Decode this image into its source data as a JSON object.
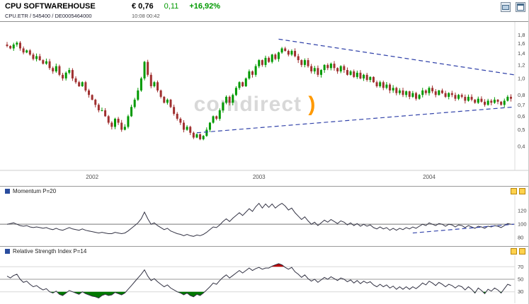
{
  "header": {
    "title": "CPU SOFTWAREHOUSE",
    "instrument_line": "CPU.ETR / 545400 / DE0005464000",
    "price": "€ 0,76",
    "change": "0,11",
    "change_pct": "+16,92%",
    "time_line": "10:08  00:42"
  },
  "watermark": {
    "text": "comdirect",
    "accent": ")"
  },
  "colors": {
    "up": "#009900",
    "down": "#a03030",
    "trendline": "#3344aa",
    "indicator_line": "#333344",
    "baseline": "#777777",
    "green_fill": "#007700",
    "red_fill": "#bb0000",
    "accent_orange": "#ff9900",
    "axis_text": "#444444"
  },
  "chart_data": [
    {
      "type": "candlestick",
      "name": "price",
      "title": "CPU SOFTWAREHOUSE",
      "x_tick_labels": [
        "2002",
        "2003",
        "2004"
      ],
      "x_tick_positions": [
        26,
        77,
        129
      ],
      "y_tick_labels": [
        "1,8",
        "1,6",
        "1,4",
        "1,2",
        "1,0",
        "0,8",
        "0,7",
        "0,6",
        "0,5",
        "0,4"
      ],
      "y_ticks": [
        1.8,
        1.6,
        1.4,
        1.2,
        1.0,
        0.8,
        0.7,
        0.6,
        0.5,
        0.4
      ],
      "y_scale": "log",
      "y_range": [
        0.3,
        1.95
      ],
      "first_open": 1.58,
      "closes": [
        1.55,
        1.5,
        1.58,
        1.62,
        1.5,
        1.42,
        1.46,
        1.38,
        1.3,
        1.35,
        1.28,
        1.22,
        1.26,
        1.15,
        1.1,
        1.18,
        1.05,
        1.0,
        1.08,
        1.12,
        1.0,
        0.95,
        0.9,
        0.95,
        0.85,
        0.8,
        0.75,
        0.7,
        0.65,
        0.65,
        0.6,
        0.55,
        0.52,
        0.58,
        0.55,
        0.5,
        0.52,
        0.6,
        0.68,
        0.75,
        0.85,
        1.0,
        1.25,
        1.05,
        0.9,
        0.95,
        0.85,
        0.78,
        0.72,
        0.75,
        0.68,
        0.62,
        0.58,
        0.55,
        0.5,
        0.52,
        0.48,
        0.45,
        0.47,
        0.44,
        0.46,
        0.5,
        0.55,
        0.6,
        0.58,
        0.65,
        0.72,
        0.78,
        0.72,
        0.8,
        0.88,
        0.95,
        0.9,
        1.0,
        1.1,
        1.05,
        1.18,
        1.28,
        1.2,
        1.32,
        1.25,
        1.38,
        1.3,
        1.42,
        1.5,
        1.45,
        1.38,
        1.45,
        1.35,
        1.28,
        1.2,
        1.28,
        1.18,
        1.1,
        1.15,
        1.05,
        1.12,
        1.2,
        1.15,
        1.22,
        1.15,
        1.1,
        1.18,
        1.12,
        1.05,
        1.1,
        1.02,
        1.08,
        1.0,
        1.05,
        0.98,
        1.02,
        0.95,
        0.9,
        0.95,
        0.88,
        0.92,
        0.85,
        0.88,
        0.82,
        0.85,
        0.8,
        0.84,
        0.78,
        0.82,
        0.76,
        0.8,
        0.85,
        0.82,
        0.88,
        0.84,
        0.8,
        0.85,
        0.82,
        0.78,
        0.82,
        0.8,
        0.76,
        0.8,
        0.78,
        0.74,
        0.78,
        0.75,
        0.72,
        0.76,
        0.73,
        0.7,
        0.74,
        0.72,
        0.75,
        0.73,
        0.7,
        0.74,
        0.78,
        0.76
      ],
      "trendlines": [
        {
          "from_i": 83,
          "from_p": 1.7,
          "to_i": 157,
          "to_p": 1.05
        },
        {
          "from_i": 58,
          "from_p": 0.48,
          "to_i": 157,
          "to_p": 0.68
        }
      ]
    },
    {
      "type": "line",
      "name": "momentum",
      "label": "Momentum P=20",
      "y_tick_labels": [
        "120",
        "100",
        "80"
      ],
      "y_ticks": [
        120,
        100,
        80
      ],
      "baseline": 100,
      "y_range": [
        75,
        140
      ],
      "values": [
        100,
        101,
        102,
        100,
        98,
        97,
        98,
        96,
        95,
        96,
        95,
        94,
        95,
        93,
        92,
        94,
        92,
        91,
        93,
        95,
        93,
        92,
        91,
        93,
        91,
        90,
        89,
        88,
        87,
        88,
        87,
        86,
        86,
        88,
        87,
        86,
        87,
        90,
        94,
        98,
        102,
        108,
        118,
        108,
        100,
        102,
        98,
        95,
        92,
        94,
        90,
        88,
        86,
        85,
        83,
        85,
        83,
        82,
        84,
        83,
        85,
        88,
        92,
        96,
        95,
        99,
        104,
        108,
        104,
        109,
        113,
        117,
        113,
        118,
        123,
        119,
        126,
        131,
        124,
        130,
        125,
        130,
        124,
        128,
        131,
        127,
        121,
        124,
        117,
        112,
        107,
        111,
        105,
        100,
        103,
        98,
        102,
        106,
        103,
        107,
        104,
        101,
        105,
        103,
        99,
        102,
        98,
        101,
        97,
        100,
        97,
        99,
        95,
        93,
        96,
        93,
        95,
        91,
        94,
        91,
        94,
        92,
        95,
        93,
        96,
        94,
        97,
        100,
        98,
        102,
        100,
        98,
        101,
        100,
        97,
        100,
        99,
        96,
        99,
        98,
        95,
        98,
        96,
        94,
        97,
        96,
        94,
        97,
        96,
        98,
        97,
        95,
        98,
        101,
        100
      ],
      "trendline": {
        "from_i": 124,
        "from_v": 87,
        "to_i": 157,
        "to_v": 100
      }
    },
    {
      "type": "line",
      "name": "rsi",
      "label": "Relative Strength Index P=14",
      "y_tick_labels": [
        "70",
        "50",
        "30"
      ],
      "y_ticks": [
        70,
        50,
        30
      ],
      "thresholds": {
        "overbought": 70,
        "oversold": 30
      },
      "y_range": [
        15,
        85
      ],
      "values": [
        55,
        52,
        56,
        58,
        50,
        45,
        47,
        42,
        38,
        40,
        36,
        33,
        35,
        30,
        28,
        31,
        26,
        24,
        28,
        32,
        30,
        28,
        26,
        30,
        27,
        25,
        23,
        22,
        20,
        24,
        26,
        24,
        25,
        29,
        27,
        25,
        28,
        34,
        40,
        46,
        52,
        58,
        65,
        55,
        48,
        51,
        46,
        42,
        38,
        41,
        36,
        33,
        30,
        28,
        25,
        28,
        24,
        22,
        26,
        24,
        28,
        33,
        38,
        44,
        42,
        48,
        53,
        57,
        52,
        56,
        60,
        64,
        60,
        64,
        68,
        64,
        67,
        69,
        66,
        68,
        68,
        71,
        73,
        75,
        73,
        69,
        66,
        69,
        62,
        58,
        53,
        57,
        51,
        47,
        50,
        45,
        49,
        53,
        50,
        54,
        51,
        48,
        52,
        50,
        46,
        49,
        44,
        48,
        43,
        47,
        44,
        46,
        41,
        38,
        42,
        38,
        41,
        36,
        39,
        34,
        38,
        34,
        38,
        34,
        38,
        35,
        39,
        44,
        41,
        47,
        44,
        40,
        45,
        42,
        38,
        42,
        40,
        36,
        40,
        38,
        33,
        38,
        34,
        28,
        36,
        32,
        27,
        34,
        31,
        36,
        33,
        28,
        35,
        42,
        40
      ]
    }
  ]
}
